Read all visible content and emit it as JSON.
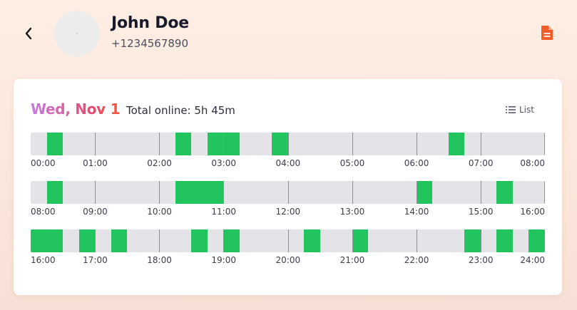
{
  "header": {
    "name": "John Doe",
    "phone": "+1234567890"
  },
  "card": {
    "date": "Wed, Nov 1",
    "total_online": "Total online: 5h 45m",
    "list_label": "List"
  },
  "colors": {
    "online": "#22c45e",
    "track": "#e4e4e8",
    "file_icon": "#f25a2a"
  },
  "timeline": {
    "hours_per_row": 8,
    "rows": [
      {
        "start_hour": 0,
        "labels": [
          "00:00",
          "01:00",
          "02:00",
          "03:00",
          "04:00",
          "05:00",
          "06:00",
          "07:00",
          "08:00"
        ],
        "segments": [
          [
            0.25,
            0.5
          ],
          [
            2.25,
            2.5
          ],
          [
            2.75,
            3.0
          ],
          [
            3.0,
            3.25
          ],
          [
            3.75,
            4.0
          ],
          [
            6.5,
            6.75
          ]
        ]
      },
      {
        "start_hour": 8,
        "labels": [
          "08:00",
          "09:00",
          "10:00",
          "11:00",
          "12:00",
          "13:00",
          "14:00",
          "15:00",
          "16:00"
        ],
        "segments": [
          [
            8.25,
            8.5
          ],
          [
            10.25,
            11.0
          ],
          [
            14.0,
            14.25
          ],
          [
            15.25,
            15.5
          ]
        ]
      },
      {
        "start_hour": 16,
        "labels": [
          "16:00",
          "17:00",
          "18:00",
          "19:00",
          "20:00",
          "21:00",
          "22:00",
          "23:00",
          "24:00"
        ],
        "segments": [
          [
            16.0,
            16.5
          ],
          [
            16.75,
            17.0
          ],
          [
            17.25,
            17.5
          ],
          [
            18.5,
            18.75
          ],
          [
            19.0,
            19.25
          ],
          [
            20.25,
            20.5
          ],
          [
            21.0,
            21.25
          ],
          [
            22.75,
            23.0
          ],
          [
            23.25,
            23.5
          ],
          [
            23.75,
            24.0
          ]
        ]
      }
    ]
  }
}
